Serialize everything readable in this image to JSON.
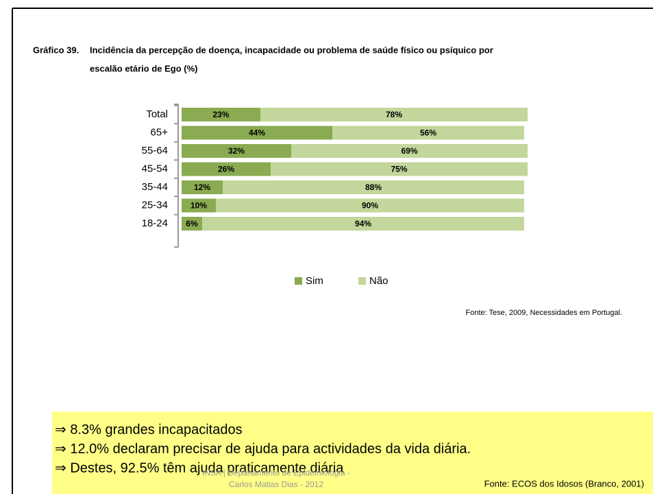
{
  "chart_data": {
    "type": "stacked-bar-horizontal",
    "title_label": "Gráfico 39.",
    "title": [
      "Incidência da percepção de doença, incapacidade ou problema de saúde físico ou psíquico por",
      "escalão etário de Ego (%)"
    ],
    "categories": [
      "Total",
      "65+",
      "55-64",
      "45-54",
      "35-44",
      "25-34",
      "18-24"
    ],
    "series": [
      {
        "name": "Sim",
        "color": "#8aab51",
        "values": [
          23,
          44,
          32,
          26,
          12,
          10,
          6
        ],
        "value_labels": [
          "23%",
          "44%",
          "32%",
          "26%",
          "12%",
          "10%",
          "6%"
        ]
      },
      {
        "name": "Não",
        "color": "#c3d69b",
        "values": [
          78,
          56,
          69,
          75,
          88,
          90,
          94
        ],
        "value_labels": [
          "78%",
          "56%",
          "69%",
          "75%",
          "88%",
          "90%",
          "94%"
        ]
      }
    ],
    "source": "Fonte: Tese, 2009, Necessidades em Portugal."
  },
  "notes": [
    "⇒ 8.3% grandes incapacitados",
    "⇒ 12.0% declaram precisar de ajuda para actividades da vida diária.",
    "⇒ Destes, 92.5% têm ajuda praticamente diária"
  ],
  "footer": [
    "INSA | Departamento de Epidemiologia -",
    "Carlos Matias Dias - 2012"
  ],
  "notes_source": "Fonte: ECOS dos Idosos (Branco, 2001)"
}
